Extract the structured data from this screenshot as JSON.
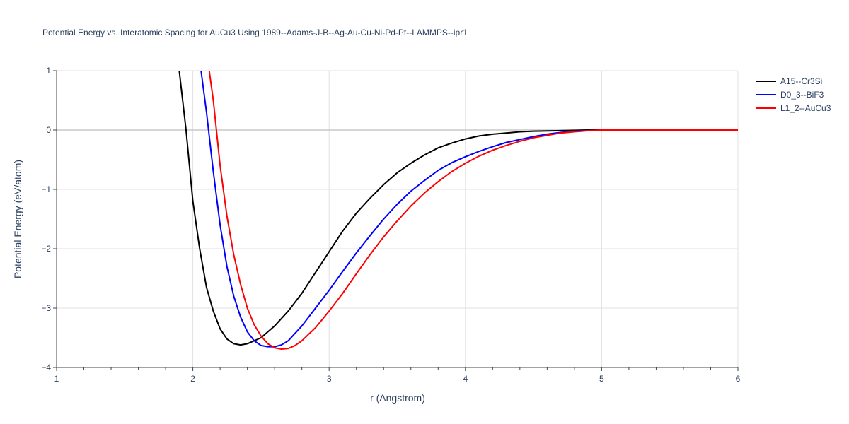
{
  "chart_data": {
    "type": "line",
    "title": "Potential Energy vs. Interatomic Spacing for AuCu3 Using 1989--Adams-J-B--Ag-Au-Cu-Ni-Pd-Pt--LAMMPS--ipr1",
    "xlabel": "r (Angstrom)",
    "ylabel": "Potential Energy (eV/atom)",
    "xlim": [
      1,
      6
    ],
    "ylim": [
      -4,
      1
    ],
    "x_ticks": [
      1,
      2,
      3,
      4,
      5,
      6
    ],
    "y_ticks": [
      1,
      0,
      -1,
      -2,
      -3,
      -4
    ],
    "x_tick_labels": [
      "1",
      "2",
      "3",
      "4",
      "5",
      "6"
    ],
    "y_tick_labels": [
      "1",
      "0",
      "−1",
      "−2",
      "−3",
      "−4"
    ],
    "grid": true,
    "legend_position": "top-right",
    "series": [
      {
        "name": "A15--Cr3Si",
        "color": "#000000",
        "points": [
          [
            1.9,
            1.0
          ],
          [
            1.95,
            0.0
          ],
          [
            2.0,
            -1.2
          ],
          [
            2.05,
            -2.0
          ],
          [
            2.1,
            -2.65
          ],
          [
            2.15,
            -3.05
          ],
          [
            2.2,
            -3.35
          ],
          [
            2.25,
            -3.52
          ],
          [
            2.3,
            -3.6
          ],
          [
            2.35,
            -3.62
          ],
          [
            2.4,
            -3.6
          ],
          [
            2.5,
            -3.5
          ],
          [
            2.6,
            -3.3
          ],
          [
            2.7,
            -3.05
          ],
          [
            2.8,
            -2.75
          ],
          [
            2.9,
            -2.4
          ],
          [
            3.0,
            -2.05
          ],
          [
            3.1,
            -1.7
          ],
          [
            3.2,
            -1.4
          ],
          [
            3.3,
            -1.15
          ],
          [
            3.4,
            -0.92
          ],
          [
            3.5,
            -0.72
          ],
          [
            3.6,
            -0.56
          ],
          [
            3.7,
            -0.42
          ],
          [
            3.8,
            -0.3
          ],
          [
            3.9,
            -0.22
          ],
          [
            4.0,
            -0.15
          ],
          [
            4.1,
            -0.1
          ],
          [
            4.2,
            -0.07
          ],
          [
            4.3,
            -0.05
          ],
          [
            4.4,
            -0.03
          ],
          [
            4.5,
            -0.02
          ],
          [
            4.7,
            -0.01
          ],
          [
            4.9,
            0.0
          ],
          [
            5.2,
            0.0
          ],
          [
            6.0,
            0.0
          ]
        ]
      },
      {
        "name": "D0_3--BiF3",
        "color": "#0000ff",
        "points": [
          [
            2.06,
            1.0
          ],
          [
            2.1,
            0.3
          ],
          [
            2.15,
            -0.7
          ],
          [
            2.2,
            -1.6
          ],
          [
            2.25,
            -2.3
          ],
          [
            2.3,
            -2.8
          ],
          [
            2.35,
            -3.15
          ],
          [
            2.4,
            -3.4
          ],
          [
            2.45,
            -3.55
          ],
          [
            2.5,
            -3.63
          ],
          [
            2.55,
            -3.65
          ],
          [
            2.6,
            -3.65
          ],
          [
            2.65,
            -3.62
          ],
          [
            2.7,
            -3.55
          ],
          [
            2.8,
            -3.3
          ],
          [
            2.9,
            -3.0
          ],
          [
            3.0,
            -2.7
          ],
          [
            3.1,
            -2.38
          ],
          [
            3.2,
            -2.07
          ],
          [
            3.3,
            -1.78
          ],
          [
            3.4,
            -1.5
          ],
          [
            3.5,
            -1.25
          ],
          [
            3.6,
            -1.03
          ],
          [
            3.7,
            -0.85
          ],
          [
            3.8,
            -0.68
          ],
          [
            3.9,
            -0.55
          ],
          [
            4.0,
            -0.45
          ],
          [
            4.1,
            -0.36
          ],
          [
            4.2,
            -0.28
          ],
          [
            4.3,
            -0.21
          ],
          [
            4.4,
            -0.16
          ],
          [
            4.5,
            -0.11
          ],
          [
            4.6,
            -0.07
          ],
          [
            4.7,
            -0.04
          ],
          [
            4.8,
            -0.02
          ],
          [
            4.9,
            -0.01
          ],
          [
            5.0,
            0.0
          ],
          [
            5.5,
            0.0
          ],
          [
            6.0,
            0.0
          ]
        ]
      },
      {
        "name": "L1_2--AuCu3",
        "color": "#ff0000",
        "points": [
          [
            2.12,
            1.0
          ],
          [
            2.15,
            0.5
          ],
          [
            2.2,
            -0.6
          ],
          [
            2.25,
            -1.45
          ],
          [
            2.3,
            -2.1
          ],
          [
            2.35,
            -2.6
          ],
          [
            2.4,
            -3.0
          ],
          [
            2.45,
            -3.28
          ],
          [
            2.5,
            -3.47
          ],
          [
            2.55,
            -3.6
          ],
          [
            2.6,
            -3.67
          ],
          [
            2.65,
            -3.69
          ],
          [
            2.7,
            -3.68
          ],
          [
            2.75,
            -3.63
          ],
          [
            2.8,
            -3.55
          ],
          [
            2.9,
            -3.33
          ],
          [
            3.0,
            -3.05
          ],
          [
            3.1,
            -2.75
          ],
          [
            3.2,
            -2.42
          ],
          [
            3.3,
            -2.1
          ],
          [
            3.4,
            -1.8
          ],
          [
            3.5,
            -1.53
          ],
          [
            3.6,
            -1.28
          ],
          [
            3.7,
            -1.06
          ],
          [
            3.8,
            -0.87
          ],
          [
            3.9,
            -0.7
          ],
          [
            4.0,
            -0.56
          ],
          [
            4.1,
            -0.44
          ],
          [
            4.2,
            -0.34
          ],
          [
            4.3,
            -0.26
          ],
          [
            4.4,
            -0.19
          ],
          [
            4.5,
            -0.13
          ],
          [
            4.6,
            -0.09
          ],
          [
            4.7,
            -0.05
          ],
          [
            4.8,
            -0.03
          ],
          [
            4.9,
            -0.01
          ],
          [
            5.0,
            0.0
          ],
          [
            5.5,
            0.0
          ],
          [
            6.0,
            0.0
          ]
        ]
      }
    ]
  }
}
